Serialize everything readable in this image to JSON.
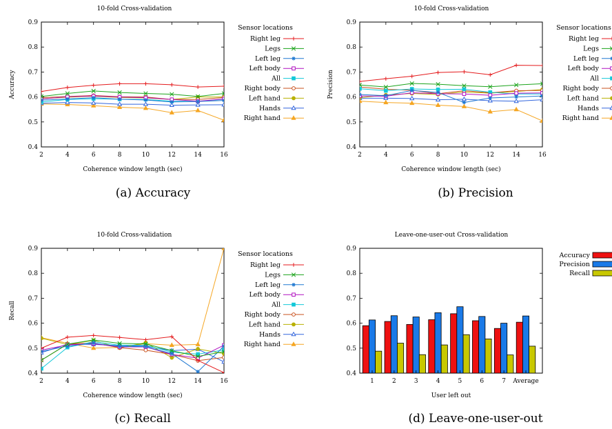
{
  "chart_data": [
    {
      "type": "line",
      "title": "10-fold Cross-validation",
      "xlabel": "Coherence window length (sec)",
      "ylabel": "Accuracy",
      "caption": "(a)  Accuracy",
      "x": [
        2,
        4,
        6,
        8,
        10,
        12,
        14,
        16
      ],
      "xticks": [
        "2",
        "4",
        "6",
        "8",
        "10",
        "12",
        "14",
        "16"
      ],
      "xlim": [
        2,
        16
      ],
      "ylim": [
        0.4,
        0.9
      ],
      "yticks": [
        "0.4",
        "0.5",
        "0.6",
        "0.7",
        "0.8",
        "0.9"
      ],
      "legend_title": "Sensor locations",
      "legend_position": "right",
      "grid": false,
      "series": [
        {
          "name": "Right leg",
          "color": "#e41a1c",
          "marker": "plus",
          "values": [
            0.622,
            0.638,
            0.647,
            0.653,
            0.653,
            0.649,
            0.64,
            0.643
          ]
        },
        {
          "name": "Legs",
          "color": "#1aa31a",
          "marker": "cross",
          "values": [
            0.602,
            0.614,
            0.624,
            0.618,
            0.614,
            0.611,
            0.602,
            0.614
          ]
        },
        {
          "name": "Left leg",
          "color": "#1f78d1",
          "marker": "asterisk",
          "values": [
            0.587,
            0.592,
            0.597,
            0.591,
            0.588,
            0.58,
            0.582,
            0.586
          ]
        },
        {
          "name": "Left body",
          "color": "#b010c0",
          "marker": "square",
          "values": [
            0.592,
            0.601,
            0.604,
            0.6,
            0.597,
            0.59,
            0.583,
            0.592
          ]
        },
        {
          "name": "All",
          "color": "#12c8d8",
          "marker": "filled-square",
          "values": [
            0.58,
            0.59,
            0.593,
            0.591,
            0.59,
            0.583,
            0.582,
            0.591
          ]
        },
        {
          "name": "Right body",
          "color": "#c8501c",
          "marker": "circle",
          "values": [
            0.597,
            0.602,
            0.606,
            0.601,
            0.6,
            0.59,
            0.59,
            0.598
          ]
        },
        {
          "name": "Left hand",
          "color": "#b8b000",
          "marker": "filled-circle",
          "values": [
            0.593,
            0.599,
            0.603,
            0.598,
            0.596,
            0.59,
            0.6,
            0.6
          ]
        },
        {
          "name": "Hands",
          "color": "#3366dd",
          "marker": "triangle",
          "values": [
            0.575,
            0.578,
            0.576,
            0.571,
            0.571,
            0.567,
            0.568,
            0.569
          ]
        },
        {
          "name": "Right hand",
          "color": "#f5a623",
          "marker": "filled-triangle",
          "values": [
            0.572,
            0.57,
            0.565,
            0.559,
            0.555,
            0.537,
            0.546,
            0.507
          ]
        }
      ]
    },
    {
      "type": "line",
      "title": "10-fold Cross-validation",
      "xlabel": "Coherence window length (sec)",
      "ylabel": "Precision",
      "caption": "(b)  Precision",
      "x": [
        2,
        4,
        6,
        8,
        10,
        12,
        14,
        16
      ],
      "xticks": [
        "2",
        "4",
        "6",
        "8",
        "10",
        "12",
        "14",
        "16"
      ],
      "xlim": [
        2,
        16
      ],
      "ylim": [
        0.4,
        0.9
      ],
      "yticks": [
        "0.4",
        "0.5",
        "0.6",
        "0.7",
        "0.8",
        "0.9"
      ],
      "legend_title": "Sensor locations",
      "legend_position": "right",
      "grid": false,
      "series": [
        {
          "name": "Right leg",
          "color": "#e41a1c",
          "marker": "plus",
          "values": [
            0.662,
            0.673,
            0.683,
            0.698,
            0.701,
            0.689,
            0.727,
            0.726
          ]
        },
        {
          "name": "Legs",
          "color": "#1aa31a",
          "marker": "cross",
          "values": [
            0.648,
            0.64,
            0.654,
            0.651,
            0.645,
            0.641,
            0.648,
            0.653
          ]
        },
        {
          "name": "Left leg",
          "color": "#1f78d1",
          "marker": "asterisk",
          "values": [
            0.61,
            0.605,
            0.626,
            0.618,
            0.578,
            0.596,
            0.6,
            0.604
          ]
        },
        {
          "name": "Left body",
          "color": "#b010c0",
          "marker": "square",
          "values": [
            0.604,
            0.603,
            0.617,
            0.613,
            0.612,
            0.607,
            0.615,
            0.616
          ]
        },
        {
          "name": "All",
          "color": "#12c8d8",
          "marker": "filled-square",
          "values": [
            0.633,
            0.625,
            0.632,
            0.63,
            0.631,
            0.619,
            0.612,
            0.612
          ]
        },
        {
          "name": "Right body",
          "color": "#c8501c",
          "marker": "circle",
          "values": [
            0.64,
            0.631,
            0.627,
            0.613,
            0.625,
            0.617,
            0.625,
            0.626
          ]
        },
        {
          "name": "Left hand",
          "color": "#b8b000",
          "marker": "filled-circle",
          "values": [
            0.597,
            0.608,
            0.614,
            0.61,
            0.62,
            0.615,
            0.622,
            0.63
          ]
        },
        {
          "name": "Hands",
          "color": "#3366dd",
          "marker": "triangle",
          "values": [
            0.595,
            0.595,
            0.594,
            0.589,
            0.591,
            0.585,
            0.583,
            0.589
          ]
        },
        {
          "name": "Right hand",
          "color": "#f5a623",
          "marker": "filled-triangle",
          "values": [
            0.583,
            0.578,
            0.575,
            0.567,
            0.562,
            0.541,
            0.55,
            0.504
          ]
        }
      ]
    },
    {
      "type": "line",
      "title": "10-fold Cross-validation",
      "xlabel": "Coherence window length (sec)",
      "ylabel": "Recall",
      "caption": "(c)  Recall",
      "x": [
        2,
        4,
        6,
        8,
        10,
        12,
        14,
        16
      ],
      "xticks": [
        "2",
        "4",
        "6",
        "8",
        "10",
        "12",
        "14",
        "16"
      ],
      "xlim": [
        2,
        16
      ],
      "ylim": [
        0.4,
        0.9
      ],
      "yticks": [
        "0.4",
        "0.5",
        "0.6",
        "0.7",
        "0.8",
        "0.9"
      ],
      "legend_title": "Sensor locations",
      "legend_position": "right",
      "grid": false,
      "series": [
        {
          "name": "Right leg",
          "color": "#e41a1c",
          "marker": "plus",
          "values": [
            0.5,
            0.544,
            0.551,
            0.543,
            0.534,
            0.546,
            0.451,
            0.402
          ]
        },
        {
          "name": "Legs",
          "color": "#1aa31a",
          "marker": "cross",
          "values": [
            0.452,
            0.516,
            0.533,
            0.519,
            0.517,
            0.49,
            0.467,
            0.486
          ]
        },
        {
          "name": "Left leg",
          "color": "#1f78d1",
          "marker": "asterisk",
          "values": [
            0.487,
            0.508,
            0.52,
            0.507,
            0.506,
            0.478,
            0.406,
            0.508
          ]
        },
        {
          "name": "Left body",
          "color": "#b010c0",
          "marker": "square",
          "values": [
            0.492,
            0.513,
            0.518,
            0.505,
            0.505,
            0.475,
            0.46,
            0.512
          ]
        },
        {
          "name": "All",
          "color": "#12c8d8",
          "marker": "filled-square",
          "values": [
            0.418,
            0.503,
            0.526,
            0.512,
            0.512,
            0.484,
            0.476,
            0.493
          ]
        },
        {
          "name": "Right body",
          "color": "#c8501c",
          "marker": "circle",
          "values": [
            0.452,
            0.516,
            0.521,
            0.502,
            0.492,
            0.475,
            0.45,
            0.463
          ]
        },
        {
          "name": "Left hand",
          "color": "#b8b000",
          "marker": "filled-circle",
          "values": [
            0.54,
            0.515,
            0.531,
            0.501,
            0.522,
            0.462,
            0.497,
            0.478
          ]
        },
        {
          "name": "Hands",
          "color": "#3366dd",
          "marker": "triangle",
          "values": [
            0.482,
            0.516,
            0.515,
            0.51,
            0.508,
            0.49,
            0.496,
            0.445
          ]
        },
        {
          "name": "Right hand",
          "color": "#f5a623",
          "marker": "filled-triangle",
          "values": [
            0.542,
            0.52,
            0.5,
            0.503,
            0.518,
            0.512,
            0.515,
            0.9
          ]
        }
      ]
    },
    {
      "type": "bar",
      "title": "Leave-one-user-out Cross-validation",
      "xlabel": "User left out",
      "ylabel": "",
      "caption": "(d)  Leave-one-user-out",
      "categories": [
        "1",
        "2",
        "3",
        "4",
        "5",
        "6",
        "7",
        "Average"
      ],
      "ylim": [
        0.4,
        0.9
      ],
      "yticks": [
        "0.4",
        "0.5",
        "0.6",
        "0.7",
        "0.8",
        "0.9"
      ],
      "legend_position": "right",
      "grid": false,
      "series": [
        {
          "name": "Accuracy",
          "color": "#ee1111",
          "values": [
            0.59,
            0.607,
            0.595,
            0.614,
            0.638,
            0.61,
            0.579,
            0.604
          ]
        },
        {
          "name": "Precision",
          "color": "#1a7ae8",
          "values": [
            0.613,
            0.63,
            0.625,
            0.642,
            0.666,
            0.627,
            0.6,
            0.629
          ]
        },
        {
          "name": "Recall",
          "color": "#c8c800",
          "values": [
            0.488,
            0.52,
            0.474,
            0.513,
            0.554,
            0.537,
            0.473,
            0.508
          ]
        }
      ]
    }
  ]
}
